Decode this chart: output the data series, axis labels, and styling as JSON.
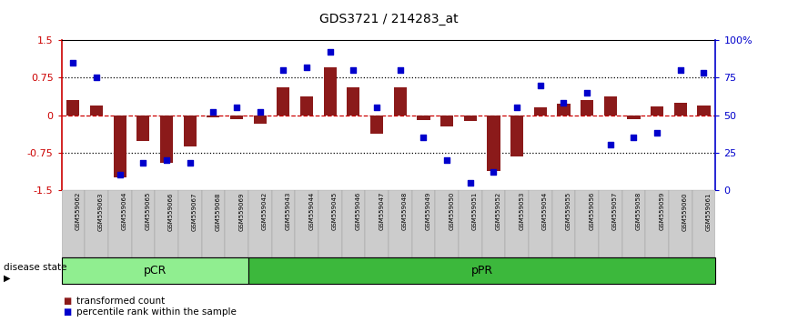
{
  "title": "GDS3721 / 214283_at",
  "samples": [
    "GSM559062",
    "GSM559063",
    "GSM559064",
    "GSM559065",
    "GSM559066",
    "GSM559067",
    "GSM559068",
    "GSM559069",
    "GSM559042",
    "GSM559043",
    "GSM559044",
    "GSM559045",
    "GSM559046",
    "GSM559047",
    "GSM559048",
    "GSM559049",
    "GSM559050",
    "GSM559051",
    "GSM559052",
    "GSM559053",
    "GSM559054",
    "GSM559055",
    "GSM559056",
    "GSM559057",
    "GSM559058",
    "GSM559059",
    "GSM559060",
    "GSM559061"
  ],
  "bar_values": [
    0.3,
    0.2,
    -1.25,
    -0.52,
    -0.95,
    -0.62,
    -0.05,
    -0.08,
    -0.18,
    0.55,
    0.38,
    0.95,
    0.55,
    -0.38,
    0.55,
    -0.1,
    -0.22,
    -0.12,
    -1.12,
    -0.82,
    0.15,
    0.22,
    0.3,
    0.38,
    -0.08,
    0.18,
    0.25,
    0.2
  ],
  "dot_values": [
    85,
    75,
    10,
    18,
    20,
    18,
    52,
    55,
    52,
    80,
    82,
    92,
    80,
    55,
    80,
    35,
    20,
    5,
    12,
    55,
    70,
    58,
    65,
    30,
    35,
    38,
    80,
    78
  ],
  "bar_color": "#8B1A1A",
  "dot_color": "#0000CC",
  "zero_line_color": "#CC0000",
  "yticks_left": [
    -1.5,
    -0.75,
    0,
    0.75,
    1.5
  ],
  "ytick_labels_left": [
    "-1.5",
    "-0.75",
    "0",
    "0.75",
    "1.5"
  ],
  "yticks_right": [
    0,
    25,
    50,
    75,
    100
  ],
  "ytick_labels_right": [
    "0",
    "25",
    "50",
    "75",
    "100%"
  ],
  "groups": [
    {
      "label": "pCR",
      "start": 0,
      "end": 8,
      "color": "#90EE90"
    },
    {
      "label": "pPR",
      "start": 8,
      "end": 28,
      "color": "#3CB83C"
    }
  ],
  "disease_state_label": "disease state",
  "legend": [
    {
      "label": "transformed count",
      "color": "#8B1A1A"
    },
    {
      "label": "percentile rank within the sample",
      "color": "#0000CC"
    }
  ],
  "bg_color": "#FFFFFF",
  "xticklabel_bg": "#CCCCCC"
}
